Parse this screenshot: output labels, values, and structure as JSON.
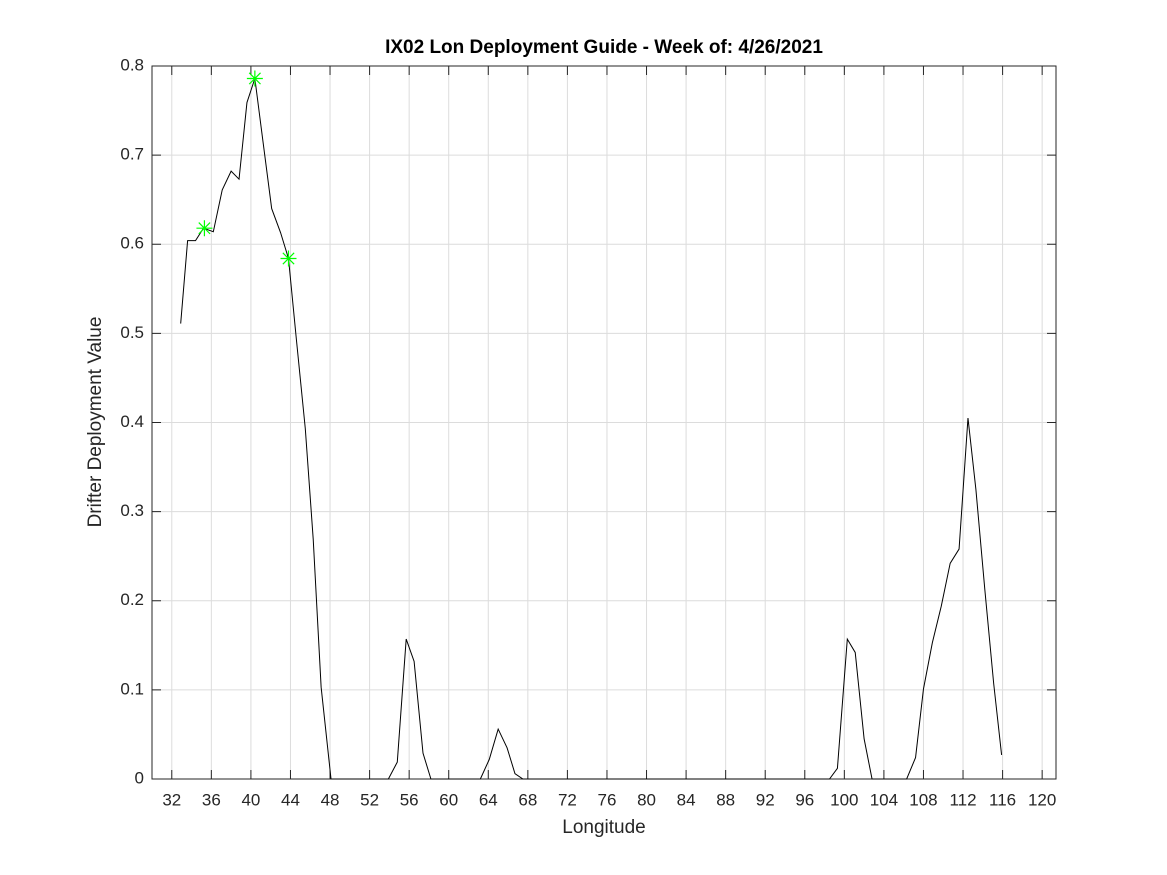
{
  "chart_data": {
    "type": "line",
    "title": "IX02 Lon Deployment Guide - Week of: 4/26/2021",
    "xlabel": "Longitude",
    "ylabel": "Drifter Deployment Value",
    "xlim": [
      30,
      121.4
    ],
    "ylim": [
      0,
      0.8
    ],
    "xticks": [
      32,
      36,
      40,
      44,
      48,
      52,
      56,
      60,
      64,
      68,
      72,
      76,
      80,
      84,
      88,
      92,
      96,
      100,
      104,
      108,
      112,
      116,
      120
    ],
    "yticks": [
      0,
      0.1,
      0.2,
      0.3,
      0.4,
      0.5,
      0.6,
      0.7,
      0.8
    ],
    "grid": true,
    "series": [
      {
        "color": "#000000",
        "marker": "none",
        "x": [
          32.9,
          33.6,
          34.4,
          35.2,
          36.2,
          37.1,
          38.0,
          38.8,
          39.6,
          40.4,
          41.2,
          42.1,
          43.0,
          43.8,
          44.6,
          45.5,
          46.3,
          47.1,
          48.1,
          53.9,
          54.8,
          55.7,
          56.5,
          57.4,
          58.2,
          63.2,
          64.1,
          65.0,
          65.9,
          66.7,
          67.5,
          98.5,
          99.3,
          100.3,
          101.1,
          102.0,
          102.8,
          106.3,
          107.2,
          108.0,
          108.9,
          109.8,
          110.7,
          111.6,
          112.5,
          113.3,
          114.2,
          115.1,
          115.9
        ],
        "values": [
          0.511,
          0.604,
          0.604,
          0.618,
          0.614,
          0.661,
          0.682,
          0.673,
          0.759,
          0.786,
          0.717,
          0.64,
          0.613,
          0.584,
          0.493,
          0.393,
          0.269,
          0.103,
          0,
          0,
          0.019,
          0.157,
          0.132,
          0.029,
          0,
          0,
          0.022,
          0.056,
          0.035,
          0.006,
          0,
          0,
          0.012,
          0.157,
          0.142,
          0.045,
          0,
          0,
          0.024,
          0.101,
          0.153,
          0.194,
          0.242,
          0.258,
          0.405,
          0.325,
          0.213,
          0.107,
          0.027
        ]
      },
      {
        "color": "#00ff00",
        "marker": "asterisk",
        "x": [
          35.3,
          40.4,
          43.8
        ],
        "values": [
          0.618,
          0.786,
          0.584
        ]
      }
    ]
  }
}
